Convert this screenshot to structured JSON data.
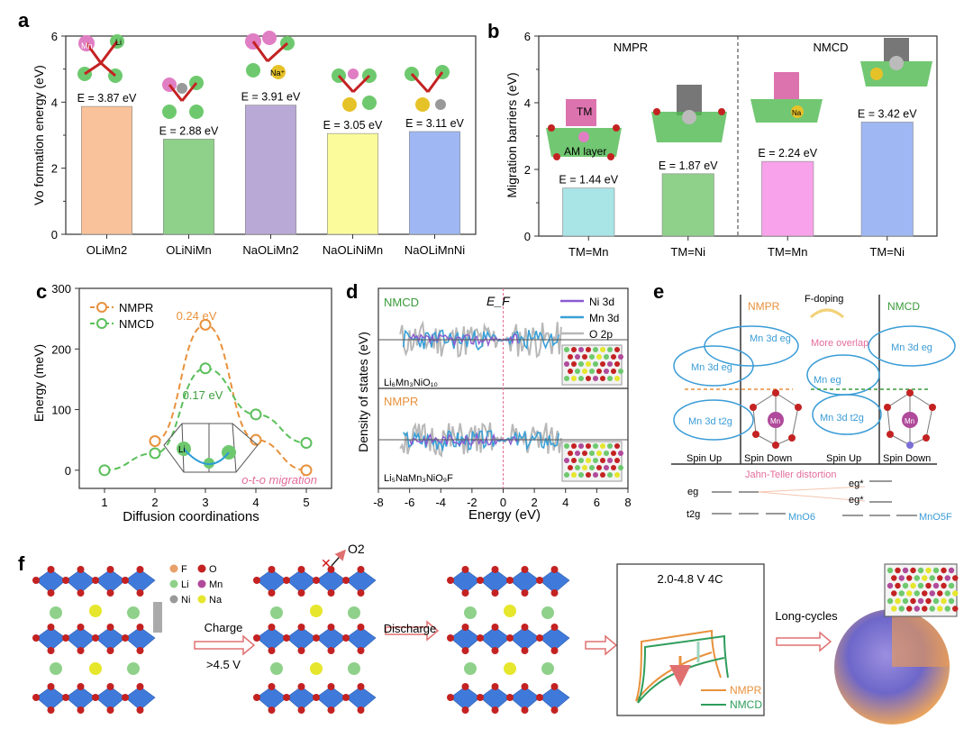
{
  "colors": {
    "orange": "#f4a55f",
    "green": "#4fae4f",
    "teal": "#2e9d5b",
    "blue": "#2f7fd0",
    "purple": "#8a5ad1",
    "grey": "#b8b8b8",
    "pink": "#e15f8f",
    "red": "#c42222",
    "ltorange": "#e8a06a",
    "cyan": "#3a9cd6",
    "layer": "#2f6fd8"
  },
  "panels": {
    "a": "a",
    "b": "b",
    "c": "c",
    "d": "d",
    "e": "e",
    "f": "f"
  },
  "chart_data": [
    {
      "id": "a",
      "type": "bar",
      "title": "",
      "xlabel": "",
      "ylabel": "Vo formation energy (eV)",
      "ylim": [
        0,
        6
      ],
      "yticks": [
        "0",
        "2",
        "4",
        "6"
      ],
      "categories": [
        "OLiMn2",
        "OLiNiMn",
        "NaOLiMn2",
        "NaOLiNiMn",
        "NaOLiMnNi"
      ],
      "values": [
        3.87,
        2.88,
        3.91,
        3.05,
        3.11
      ],
      "labels": [
        "E = 3.87 eV",
        "E = 2.88 eV",
        "E = 3.91 eV",
        "E = 3.05 eV",
        "E = 3.11 eV"
      ],
      "bar_colors": [
        "#f9c29a",
        "#8fd18a",
        "#b8a9d6",
        "#fbfb9c",
        "#9fb8f3"
      ],
      "annotations": [
        "Mn",
        "Li",
        "Na⁺"
      ]
    },
    {
      "id": "b",
      "type": "bar",
      "title": "",
      "xlabel": "",
      "ylabel": "Migration barriers (eV)",
      "ylim": [
        0,
        6
      ],
      "yticks": [
        "0",
        "2",
        "4",
        "6"
      ],
      "groups": [
        "NMPR",
        "NMCD"
      ],
      "categories": [
        "TM=Mn",
        "TM=Ni",
        "TM=Mn",
        "TM=Ni"
      ],
      "values": [
        1.44,
        1.87,
        2.24,
        3.42
      ],
      "labels": [
        "E = 1.44 eV",
        "E = 1.87 eV",
        "E = 2.24 eV",
        "E = 3.42 eV"
      ],
      "bar_colors": [
        "#a9e4e6",
        "#8fd18a",
        "#f7a2ea",
        "#9fb8f3"
      ],
      "annotations": [
        "TM",
        "AM layer",
        "Na"
      ]
    },
    {
      "id": "c",
      "type": "line",
      "title": "",
      "xlabel": "Diffusion coordinations",
      "ylabel": "Energy (meV)",
      "xlim": [
        0.5,
        5.5
      ],
      "ylim": [
        -30,
        300
      ],
      "xticks": [
        "1",
        "2",
        "3",
        "4",
        "5"
      ],
      "yticks": [
        "0",
        "100",
        "200",
        "300"
      ],
      "series": [
        {
          "name": "NMPR",
          "color": "#e8913c",
          "x": [
            2,
            3,
            4,
            5
          ],
          "y": [
            48,
            240,
            50,
            0
          ]
        },
        {
          "name": "NMCD",
          "color": "#5bbf5b",
          "x": [
            1,
            2,
            3,
            4,
            5
          ],
          "y": [
            0,
            28,
            168,
            92,
            45
          ]
        }
      ],
      "annotations": [
        "0.24 eV",
        "0.17 eV",
        "o-t-o migration",
        "Li"
      ]
    },
    {
      "id": "d",
      "type": "line",
      "title": "",
      "xlabel": "Energy (eV)",
      "ylabel": "Density of states (eV)",
      "xlim": [
        -8,
        8
      ],
      "xticks": [
        "-8",
        "-6",
        "-4",
        "-2",
        "0",
        "2",
        "4",
        "6",
        "8"
      ],
      "fermi_label": "E_F",
      "subplots": [
        {
          "system": "NMCD",
          "formula": "Li₆Mn₃NiO₁₀",
          "color": "#3a9b3a"
        },
        {
          "system": "NMPR",
          "formula": "Li₅NaMn₃NiO₉F",
          "color": "#e8913c"
        }
      ],
      "legend": [
        {
          "name": "Ni 3d",
          "color": "#8a5ad1"
        },
        {
          "name": "Mn 3d",
          "color": "#3aa0d6"
        },
        {
          "name": "O 2p",
          "color": "#b8b8b8"
        }
      ]
    }
  ],
  "panel_e": {
    "f_doping": "F-doping",
    "nmpr": "NMPR",
    "nmcd": "NMCD",
    "more_overlap": "More overlap",
    "mn_eg": "Mn 3d eg",
    "mn_t2g": "Mn 3d t2g",
    "mn_eg2": "Mn eg",
    "spin_up": "Spin Up",
    "spin_down": "Spin Down",
    "jahn_teller": "Jahn-Teller distortion",
    "eg": "eg",
    "t2g": "t2g",
    "eg_star": "eg*",
    "mno6": "MnO6",
    "mno5f": "MnO5F",
    "mn_atom": "Mn"
  },
  "panel_f": {
    "legend": [
      "F",
      "O",
      "Li",
      "Mn",
      "Ni",
      "Na"
    ],
    "charge": "Charge",
    "voltage": ">4.5 V",
    "o2": "O2",
    "discharge": "Discharge",
    "cycling_title": "2.0-4.8 V  4C",
    "nmpr": "NMPR",
    "nmcd": "NMCD",
    "long_cycles": "Long-cycles"
  }
}
